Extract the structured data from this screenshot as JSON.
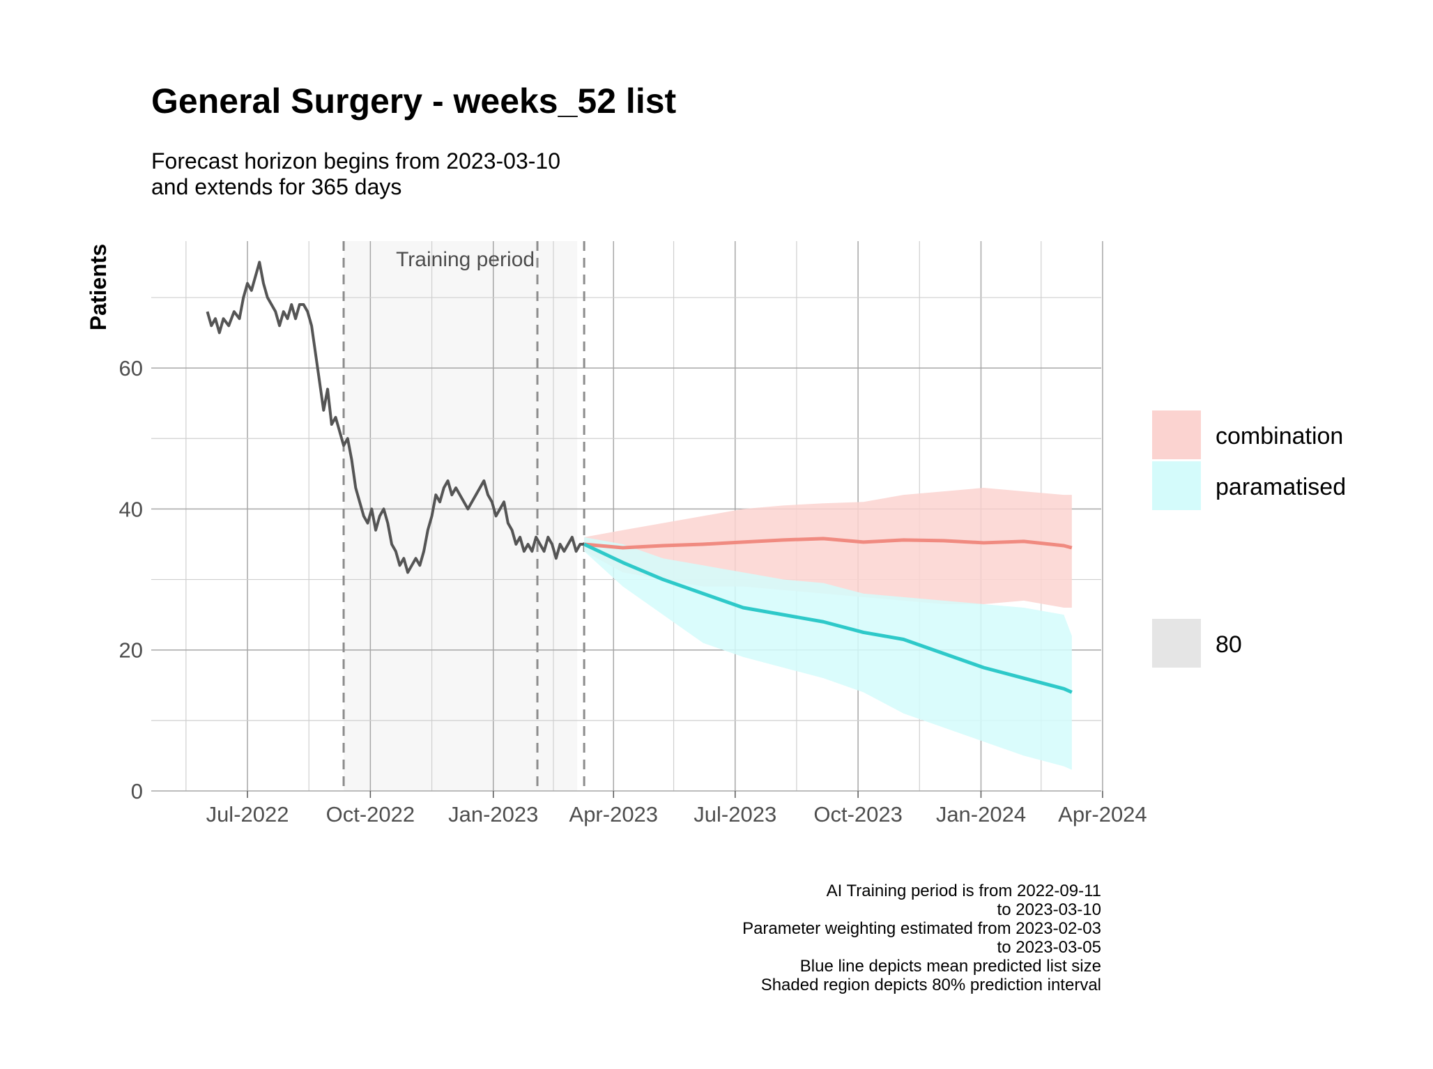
{
  "chart_data": {
    "type": "line",
    "title": "General Surgery - weeks_52 list",
    "subtitle_lines": [
      "Forecast horizon begins from 2023-03-10",
      "and extends for 365 days"
    ],
    "ylabel": "Patients",
    "xlabel": "",
    "x_range": [
      "2022-04-20",
      "2024-03-31"
    ],
    "ylim": [
      0,
      78
    ],
    "y_ticks": [
      0,
      20,
      40,
      60
    ],
    "y_tick_labels": [
      "0",
      "20",
      "40",
      "60"
    ],
    "x_ticks": [
      "2022-07-01",
      "2022-10-01",
      "2023-01-01",
      "2023-04-01",
      "2023-07-01",
      "2023-10-01",
      "2024-01-01",
      "2024-04-01"
    ],
    "x_tick_labels": [
      "Jul-2022",
      "Oct-2022",
      "Jan-2023",
      "Apr-2023",
      "Jul-2023",
      "Oct-2023",
      "Jan-2024",
      "Apr-2024"
    ],
    "grid": true,
    "training_period": {
      "start": "2022-09-11",
      "end": "2023-03-10",
      "label": "Training period"
    },
    "vlines": [
      "2022-09-11",
      "2023-02-03",
      "2023-03-10"
    ],
    "history": {
      "color": "#555555",
      "x": [
        "2022-06-01",
        "2022-06-04",
        "2022-06-07",
        "2022-06-10",
        "2022-06-13",
        "2022-06-17",
        "2022-06-21",
        "2022-06-25",
        "2022-06-28",
        "2022-07-01",
        "2022-07-04",
        "2022-07-07",
        "2022-07-10",
        "2022-07-13",
        "2022-07-16",
        "2022-07-19",
        "2022-07-22",
        "2022-07-25",
        "2022-07-28",
        "2022-07-31",
        "2022-08-03",
        "2022-08-06",
        "2022-08-09",
        "2022-08-12",
        "2022-08-15",
        "2022-08-18",
        "2022-08-21",
        "2022-08-24",
        "2022-08-27",
        "2022-08-30",
        "2022-09-02",
        "2022-09-05",
        "2022-09-08",
        "2022-09-11",
        "2022-09-14",
        "2022-09-17",
        "2022-09-20",
        "2022-09-23",
        "2022-09-26",
        "2022-09-29",
        "2022-10-02",
        "2022-10-05",
        "2022-10-08",
        "2022-10-11",
        "2022-10-14",
        "2022-10-17",
        "2022-10-20",
        "2022-10-23",
        "2022-10-26",
        "2022-10-29",
        "2022-11-01",
        "2022-11-04",
        "2022-11-07",
        "2022-11-10",
        "2022-11-13",
        "2022-11-16",
        "2022-11-19",
        "2022-11-22",
        "2022-11-25",
        "2022-11-28",
        "2022-12-01",
        "2022-12-04",
        "2022-12-07",
        "2022-12-10",
        "2022-12-13",
        "2022-12-16",
        "2022-12-19",
        "2022-12-22",
        "2022-12-25",
        "2022-12-28",
        "2022-12-31",
        "2023-01-03",
        "2023-01-06",
        "2023-01-09",
        "2023-01-12",
        "2023-01-15",
        "2023-01-18",
        "2023-01-21",
        "2023-01-24",
        "2023-01-27",
        "2023-01-30",
        "2023-02-02",
        "2023-02-05",
        "2023-02-08",
        "2023-02-11",
        "2023-02-14",
        "2023-02-17",
        "2023-02-20",
        "2023-02-23",
        "2023-02-26",
        "2023-03-01",
        "2023-03-04",
        "2023-03-07",
        "2023-03-10"
      ],
      "y": [
        68,
        66,
        67,
        65,
        67,
        66,
        68,
        67,
        70,
        72,
        71,
        73,
        75,
        72,
        70,
        69,
        68,
        66,
        68,
        67,
        69,
        67,
        69,
        69,
        68,
        66,
        62,
        58,
        54,
        57,
        52,
        53,
        51,
        49,
        50,
        47,
        43,
        41,
        39,
        38,
        40,
        37,
        39,
        40,
        38,
        35,
        34,
        32,
        33,
        31,
        32,
        33,
        32,
        34,
        37,
        39,
        42,
        41,
        43,
        44,
        42,
        43,
        42,
        41,
        40,
        41,
        42,
        43,
        44,
        42,
        41,
        39,
        40,
        41,
        38,
        37,
        35,
        36,
        34,
        35,
        34,
        36,
        35,
        34,
        36,
        35,
        33,
        35,
        34,
        35,
        36,
        34,
        35,
        35
      ]
    },
    "series": [
      {
        "name": "combination",
        "color": "#f08a80",
        "band_color": "#fbd3d0",
        "x": [
          "2023-03-10",
          "2023-04-08",
          "2023-05-08",
          "2023-06-07",
          "2023-07-07",
          "2023-08-06",
          "2023-09-05",
          "2023-10-05",
          "2023-11-04",
          "2023-12-04",
          "2024-01-03",
          "2024-02-02",
          "2024-03-03",
          "2024-03-09"
        ],
        "values": [
          35,
          34.5,
          34.8,
          35,
          35.3,
          35.6,
          35.8,
          35.3,
          35.6,
          35.5,
          35.2,
          35.4,
          34.8,
          34.5
        ],
        "lower": [
          34,
          31,
          30,
          29,
          29,
          28.5,
          28,
          27.5,
          27,
          26.5,
          26.5,
          27,
          26,
          26
        ],
        "upper": [
          36,
          37,
          38,
          39,
          40,
          40.5,
          40.8,
          41,
          42,
          42.5,
          43,
          42.5,
          42,
          42
        ]
      },
      {
        "name": "paramatised",
        "color": "#2ec9c9",
        "band_color": "#d4fbfb",
        "x": [
          "2023-03-10",
          "2023-04-08",
          "2023-05-08",
          "2023-06-07",
          "2023-07-07",
          "2023-08-06",
          "2023-09-05",
          "2023-10-05",
          "2023-11-04",
          "2023-12-04",
          "2024-01-03",
          "2024-02-02",
          "2024-03-03",
          "2024-03-09"
        ],
        "values": [
          35,
          32.4,
          30,
          28,
          26,
          25,
          24,
          22.5,
          21.5,
          19.5,
          17.5,
          16,
          14.5,
          14
        ],
        "lower": [
          34,
          29,
          25,
          21,
          19,
          17.5,
          16,
          14,
          11,
          9,
          7,
          5,
          3.5,
          3
        ],
        "upper": [
          36,
          35,
          33,
          32,
          31,
          30,
          29.5,
          28,
          27.5,
          27,
          26.5,
          26,
          25,
          22
        ]
      }
    ],
    "legend": {
      "placement": "right",
      "entries": [
        {
          "label": "combination",
          "color": "#fbd3d0"
        },
        {
          "label": "paramatised",
          "color": "#d4fbfb"
        }
      ],
      "level_label": "80",
      "level_color": "#e5e5e5"
    },
    "caption_lines": [
      "AI Training period is from 2022-09-11",
      "to 2023-03-10",
      "Parameter weighting estimated from 2023-02-03",
      "to 2023-03-05",
      "Blue line depicts mean predicted list size",
      "Shaded region depicts 80% prediction interval"
    ]
  }
}
